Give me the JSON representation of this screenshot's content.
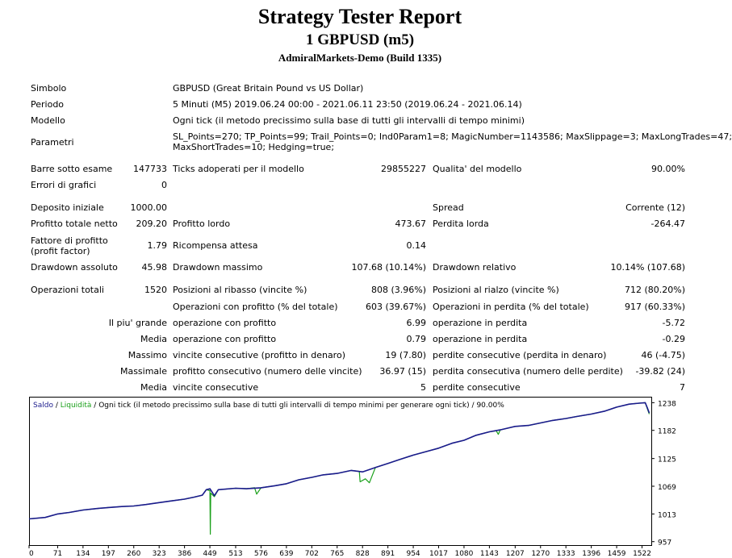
{
  "header": {
    "title": "Strategy Tester Report",
    "subtitle": "1 GBPUSD (m5)",
    "server": "AdmiralMarkets-Demo (Build 1335)"
  },
  "info": {
    "symbol_label": "Simbolo",
    "symbol_value": "GBPUSD (Great Britain Pound vs US Dollar)",
    "period_label": "Periodo",
    "period_value": "5 Minuti (M5) 2019.06.24 00:00 - 2021.06.11 23:50 (2019.06.24 - 2021.06.14)",
    "model_label": "Modello",
    "model_value": "Ogni tick (il metodo precissimo sulla base di tutti gli intervalli di tempo minimi)",
    "params_label": "Parametri",
    "params_value_1": "SL_Points=270; TP_Points=99; Trail_Points=0; Ind0Param1=8; MagicNumber=1143586; MaxSlippage=3; MaxLongTrades=47;",
    "params_value_2": "MaxShortTrades=10; Hedging=true;"
  },
  "stats": {
    "bars_label": "Barre sotto esame",
    "bars_value": "147733",
    "ticks_label": "Ticks adoperati per il modello",
    "ticks_value": "29855227",
    "quality_label": "Qualita' del modello",
    "quality_value": "90.00%",
    "errors_label": "Errori di grafici",
    "errors_value": "0",
    "deposit_label": "Deposito iniziale",
    "deposit_value": "1000.00",
    "spread_label": "Spread",
    "spread_value": "Corrente (12)",
    "net_profit_label": "Profitto totale netto",
    "net_profit_value": "209.20",
    "gross_profit_label": "Profitto lordo",
    "gross_profit_value": "473.67",
    "gross_loss_label": "Perdita lorda",
    "gross_loss_value": "-264.47",
    "profit_factor_label": "Fattore di profitto (profit factor)",
    "profit_factor_value": "1.79",
    "expected_payoff_label": "Ricompensa attesa",
    "expected_payoff_value": "0.14",
    "abs_dd_label": "Drawdown assoluto",
    "abs_dd_value": "45.98",
    "max_dd_label": "Drawdown massimo",
    "max_dd_value": "107.68 (10.14%)",
    "rel_dd_label": "Drawdown relativo",
    "rel_dd_value": "10.14% (107.68)",
    "total_trades_label": "Operazioni totali",
    "total_trades_value": "1520",
    "short_label": "Posizioni al ribasso (vincite %)",
    "short_value": "808 (3.96%)",
    "long_label": "Posizioni al rialzo (vincite %)",
    "long_value": "712 (80.20%)",
    "profit_trades_label": "Operazioni con profitto (% del totale)",
    "profit_trades_value": "603 (39.67%)",
    "loss_trades_label": "Operazioni in perdita (% del totale)",
    "loss_trades_value": "917 (60.33%)",
    "largest_label": "Il piu' grande",
    "largest_profit_label": "operazione con profitto",
    "largest_profit_value": "6.99",
    "largest_loss_label": "operazione in perdita",
    "largest_loss_value": "-5.72",
    "average_label": "Media",
    "avg_profit_label": "operazione con profitto",
    "avg_profit_value": "0.79",
    "avg_loss_label": "operazione in perdita",
    "avg_loss_value": "-0.29",
    "maximum_label": "Massimo",
    "max_consec_wins_label": "vincite consecutive (profitto in denaro)",
    "max_consec_wins_value": "19 (7.80)",
    "max_consec_losses_label": "perdite consecutive (perdita in denaro)",
    "max_consec_losses_value": "46 (-4.75)",
    "maximal_label": "Massimale",
    "maximal_profit_label": "profitto consecutivo (numero delle vincite)",
    "maximal_profit_value": "36.97 (15)",
    "maximal_loss_label": "perdita consecutiva (numero delle perdite)",
    "maximal_loss_value": "-39.82 (24)",
    "average2_label": "Media",
    "avg_consec_wins_label": "vincite consecutive",
    "avg_consec_wins_value": "5",
    "avg_consec_losses_label": "perdite consecutive",
    "avg_consec_losses_value": "7"
  },
  "chart_data": {
    "type": "line",
    "legend": {
      "balance": "Saldo",
      "sep1": " / ",
      "equity": "Liquidità",
      "sep2": " / ",
      "description": "Ogni tick (il metodo precissimo sulla base di tutti gli intervalli di tempo minimi per generare ogni tick)",
      "sep3": " / ",
      "quality": "90.00%"
    },
    "colors": {
      "balance": "#1a1a8c",
      "equity": "#1aa01a"
    },
    "x_ticks": [
      0,
      71,
      134,
      197,
      260,
      323,
      386,
      449,
      513,
      576,
      639,
      702,
      765,
      828,
      891,
      954,
      1017,
      1080,
      1143,
      1207,
      1270,
      1333,
      1396,
      1459,
      1522
    ],
    "y_ticks": [
      1238,
      1182,
      1125,
      1069,
      1013,
      957
    ],
    "xlim": [
      0,
      1545
    ],
    "ylim": [
      950,
      1250
    ],
    "series": [
      {
        "name": "Saldo",
        "x": [
          0,
          40,
          71,
          100,
          134,
          170,
          197,
          230,
          260,
          290,
          323,
          350,
          386,
          410,
          430,
          440,
          449,
          460,
          470,
          513,
          540,
          576,
          610,
          639,
          670,
          702,
          730,
          765,
          800,
          828,
          860,
          891,
          920,
          954,
          990,
          1017,
          1050,
          1080,
          1110,
          1143,
          1170,
          1207,
          1240,
          1270,
          1300,
          1333,
          1360,
          1396,
          1430,
          1459,
          1490,
          1515,
          1530,
          1535,
          1540
        ],
        "y": [
          1003,
          1006,
          1013,
          1016,
          1021,
          1024,
          1026,
          1028,
          1029,
          1032,
          1036,
          1039,
          1043,
          1047,
          1051,
          1062,
          1064,
          1050,
          1062,
          1065,
          1064,
          1066,
          1070,
          1074,
          1082,
          1087,
          1092,
          1095,
          1101,
          1098,
          1107,
          1115,
          1123,
          1132,
          1140,
          1146,
          1156,
          1162,
          1172,
          1179,
          1183,
          1190,
          1192,
          1197,
          1202,
          1206,
          1210,
          1215,
          1221,
          1229,
          1235,
          1237,
          1238,
          1228,
          1217
        ]
      },
      {
        "name": "Liquidità",
        "x": [
          0,
          40,
          71,
          100,
          134,
          170,
          197,
          230,
          260,
          290,
          323,
          350,
          386,
          410,
          430,
          440,
          449,
          450,
          451,
          460,
          470,
          513,
          540,
          560,
          565,
          576,
          610,
          639,
          670,
          702,
          730,
          765,
          800,
          820,
          822,
          835,
          845,
          860,
          891,
          920,
          954,
          990,
          1017,
          1050,
          1080,
          1110,
          1143,
          1160,
          1165,
          1170,
          1207,
          1240,
          1270,
          1300,
          1333,
          1360,
          1396,
          1430,
          1459,
          1490,
          1515,
          1530,
          1535,
          1540
        ],
        "y": [
          1003,
          1006,
          1013,
          1016,
          1021,
          1024,
          1026,
          1028,
          1029,
          1032,
          1036,
          1039,
          1043,
          1047,
          1051,
          1062,
          1060,
          972,
          1055,
          1048,
          1062,
          1065,
          1064,
          1066,
          1053,
          1066,
          1070,
          1074,
          1082,
          1087,
          1092,
          1095,
          1101,
          1099,
          1078,
          1084,
          1076,
          1107,
          1115,
          1123,
          1132,
          1140,
          1146,
          1156,
          1162,
          1172,
          1179,
          1181,
          1174,
          1183,
          1190,
          1192,
          1197,
          1202,
          1206,
          1210,
          1215,
          1221,
          1229,
          1235,
          1237,
          1238,
          1226,
          1215
        ]
      }
    ]
  }
}
